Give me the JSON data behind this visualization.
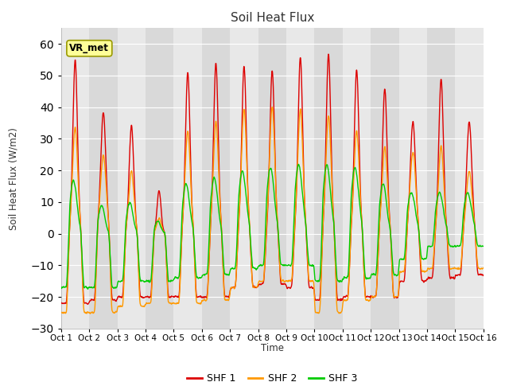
{
  "title": "Soil Heat Flux",
  "ylabel": "Soil Heat Flux (W/m2)",
  "xlabel": "Time",
  "ylim": [
    -30,
    65
  ],
  "xlim": [
    0,
    15
  ],
  "xtick_labels": [
    "Oct 1",
    "Oct 2",
    "Oct 3",
    "Oct 4",
    "Oct 5",
    "Oct 6",
    "Oct 7",
    "Oct 8",
    "Oct 9",
    "Oct 10",
    "Oct 11",
    "Oct 12",
    "Oct 13",
    "Oct 14",
    "Oct 15",
    "Oct 16"
  ],
  "legend_labels": [
    "SHF 1",
    "SHF 2",
    "SHF 3"
  ],
  "legend_colors": [
    "#dd0000",
    "#ff9900",
    "#00cc00"
  ],
  "site_label": "VR_met",
  "background_color": "#ffffff",
  "plot_bg_light": "#e8e8e8",
  "plot_bg_dark": "#d0d0d0",
  "grid_color": "#ffffff",
  "n_days": 15,
  "points_per_day": 144
}
